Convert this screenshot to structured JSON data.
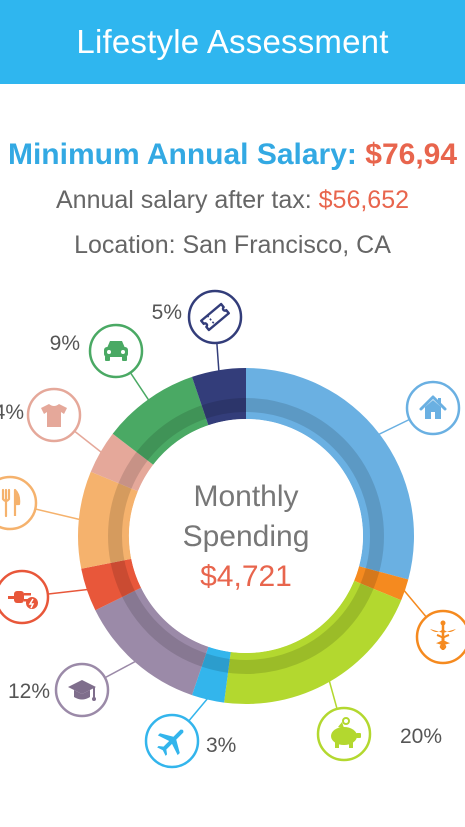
{
  "header": {
    "title": "Lifestyle Assessment"
  },
  "summary": {
    "min_salary_label": "Minimum Annual Salary:",
    "min_salary_value": "$76,94",
    "after_tax_label": "Annual salary after tax:",
    "after_tax_value": "$56,652",
    "location": "Location: San Francisco, CA"
  },
  "center": {
    "line1": "Monthly",
    "line2": "Spending",
    "amount": "$4,721"
  },
  "chart_data": {
    "type": "pie",
    "title": "",
    "total": "$4,721",
    "slices": [
      {
        "category": "housing",
        "icon": "house-icon",
        "value": 28,
        "label": "",
        "color": "#6ab0e2"
      },
      {
        "category": "medical",
        "icon": "caduceus-icon",
        "value": 2,
        "label": "",
        "color": "#f58a1f"
      },
      {
        "category": "savings",
        "icon": "piggy-bank-icon",
        "value": 20,
        "label": "20%",
        "color": "#b3d82f"
      },
      {
        "category": "travel",
        "icon": "airplane-icon",
        "value": 3,
        "label": "3%",
        "color": "#33b5ec"
      },
      {
        "category": "education",
        "icon": "graduation-cap-icon",
        "value": 12,
        "label": "12%",
        "color": "#9b8aa8"
      },
      {
        "category": "utilities",
        "icon": "plug-icon",
        "value": 4,
        "label": "",
        "color": "#e8573a"
      },
      {
        "category": "dining",
        "icon": "fork-knife-icon",
        "value": 9,
        "label": "",
        "color": "#f5b26d"
      },
      {
        "category": "clothing",
        "icon": "tshirt-icon",
        "value": 4,
        "label": "4%",
        "color": "#e5a89a"
      },
      {
        "category": "transportation",
        "icon": "car-icon",
        "value": 9,
        "label": "9%",
        "color": "#4aa964"
      },
      {
        "category": "entertainment",
        "icon": "ticket-icon",
        "value": 5,
        "label": "5%",
        "color": "#333d7a"
      }
    ]
  }
}
